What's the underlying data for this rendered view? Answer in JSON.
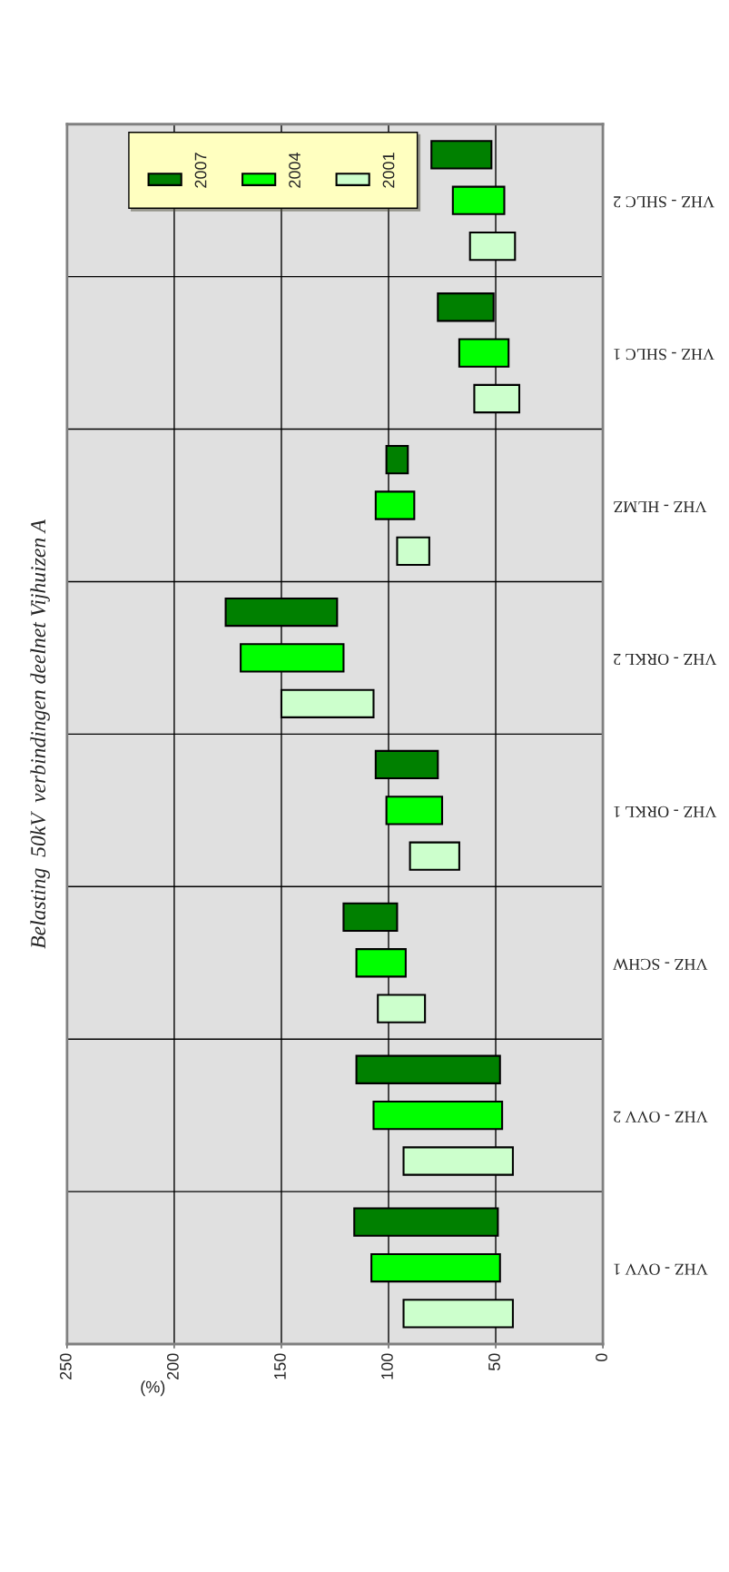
{
  "chart_data": {
    "type": "bar",
    "orientation": "horizontal",
    "title": "Belasting  50kV  verbindingen deelnet Vijhuizen A",
    "xlabel": "(%)",
    "categories": [
      "VHZ - SHLC 2",
      "VHZ - SHLC 1",
      "VHZ - HLMZ",
      "VHZ - ORKL 2",
      "VHZ - ORKL 1",
      "VHZ - SCHW",
      "VHZ - OVV 2",
      "VHZ - OVV 1"
    ],
    "series": [
      {
        "name": "2007",
        "color": "#008000",
        "base": [
          52,
          51,
          91,
          124,
          77,
          96,
          48,
          49
        ],
        "values": [
          28,
          26,
          10,
          52,
          29,
          25,
          67,
          67
        ]
      },
      {
        "name": "2004",
        "color": "#00ff00",
        "base": [
          46,
          44,
          88,
          121,
          75,
          92,
          47,
          48
        ],
        "values": [
          24,
          23,
          18,
          48,
          26,
          23,
          60,
          60
        ]
      },
      {
        "name": "2001",
        "color": "#ccffcc",
        "base": [
          41,
          39,
          81,
          107,
          67,
          83,
          42,
          42
        ],
        "values": [
          21,
          21,
          15,
          43,
          23,
          22,
          51,
          51
        ]
      }
    ],
    "xlim": [
      250,
      0
    ],
    "xticks": [
      0,
      50,
      100,
      150,
      200,
      250
    ],
    "grid": true,
    "legend": "top left"
  }
}
